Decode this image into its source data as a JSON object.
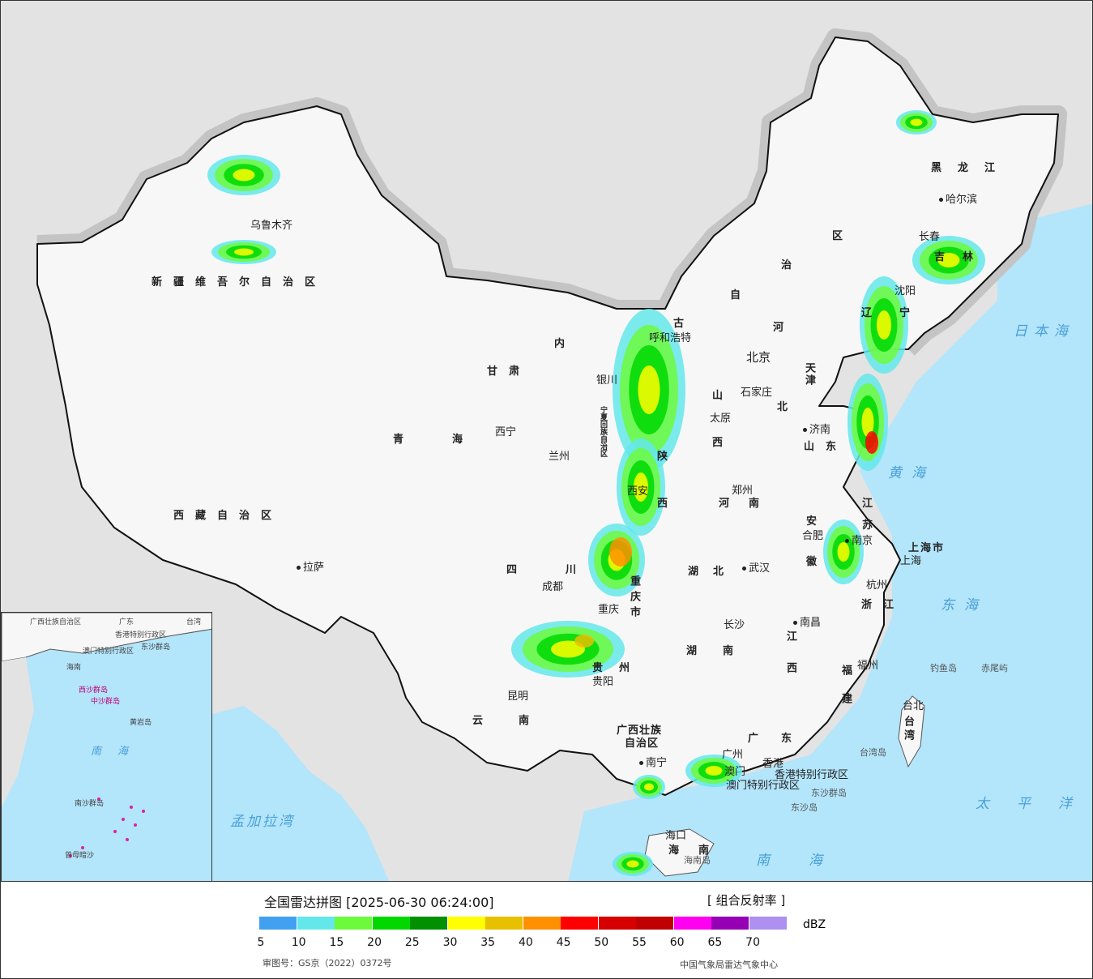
{
  "legend": {
    "title": "全国雷达拼图 [2025-06-30 06:24:00]",
    "product": "[ 组合反射率 ]",
    "unit": "dBZ",
    "colors": [
      "#41a0f0",
      "#64e7eb",
      "#6dfa3d",
      "#00d800",
      "#019000",
      "#ffff00",
      "#e7c000",
      "#ff9000",
      "#ff0000",
      "#d60000",
      "#c00000",
      "#ff00f0",
      "#9600b4",
      "#ad90f0"
    ],
    "ticks": [
      "5",
      "10",
      "15",
      "20",
      "25",
      "30",
      "35",
      "40",
      "45",
      "50",
      "55",
      "60",
      "65",
      "70"
    ],
    "approval": "审图号：GS京（2022）0372号",
    "source": "中国气象局雷达气象中心"
  },
  "map": {
    "colors": {
      "sea": "#b3e5fb",
      "land_outside": "#e3e3e3",
      "china": "#f7f7f7",
      "border": "#111111",
      "halo": "#bdbdbd"
    },
    "provinces": [
      "新疆维吾尔自治区",
      "西藏自治区",
      "青海",
      "甘肃",
      "内",
      "古",
      "自",
      "治",
      "区",
      "宁夏回族自治区",
      "陕",
      "西",
      "山",
      "西",
      "河",
      "北",
      "山东",
      "河南",
      "江",
      "苏",
      "安",
      "徽",
      "浙江",
      "四",
      "川",
      "重庆市",
      "湖北",
      "湖南",
      "江西",
      "福建",
      "贵州",
      "云南",
      "广西壮族",
      "自治区",
      "广东",
      "海南",
      "台湾",
      "黑龙江",
      "吉林",
      "辽宁",
      "上海市",
      "天津"
    ],
    "cities": [
      "乌鲁木齐",
      "拉萨",
      "西宁",
      "兰州",
      "银川",
      "呼和浩特",
      "西安",
      "太原",
      "石家庄",
      "北京",
      "济南",
      "郑州",
      "南京",
      "上海",
      "合肥",
      "杭州",
      "成都",
      "重庆",
      "武汉",
      "长沙",
      "南昌",
      "福州",
      "贵阳",
      "昆明",
      "南宁",
      "广州",
      "香港",
      "澳门",
      "海口",
      "台北",
      "哈尔滨",
      "长春",
      "沈阳"
    ],
    "others": [
      "香港特别行政区",
      "澳门特别行政区",
      "海南岛",
      "台湾岛",
      "钓鱼岛",
      "赤尾屿",
      "东沙群岛",
      "东沙岛"
    ],
    "seas": [
      "黄海",
      "东海",
      "日本海",
      "南海",
      "太平洋",
      "孟加拉湾"
    ],
    "inset": [
      "广西壮族自治区",
      "广东",
      "香港特别行政区",
      "澳门特别行政区",
      "台湾",
      "海南",
      "东沙群岛",
      "西沙群岛",
      "中沙群岛",
      "黄岩岛",
      "南海",
      "南沙群岛",
      "曾母暗沙"
    ]
  }
}
